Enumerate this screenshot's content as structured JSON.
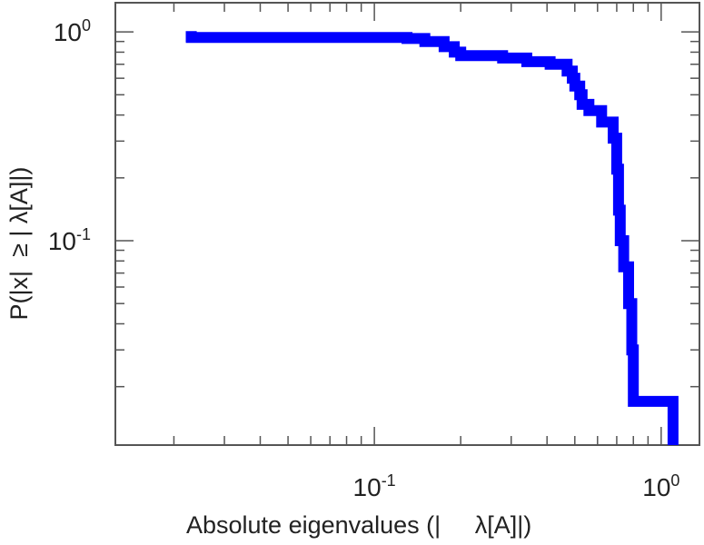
{
  "chart_data": {
    "type": "line",
    "title": "",
    "xlabel": "Absolute eigenvalues (|     λ[A]|)",
    "ylabel": "P(|x|  ≥ | λ[A]|)",
    "xscale": "log",
    "yscale": "log",
    "xlim": [
      0.0125,
      1.36
    ],
    "ylim": [
      0.0105,
      1.38
    ],
    "x_ticks": [
      {
        "value": 0.1,
        "base": "10",
        "exp": "-1"
      },
      {
        "value": 1,
        "base": "10",
        "exp": "0"
      }
    ],
    "y_ticks": [
      {
        "value": 0.1,
        "base": "10",
        "exp": "-1"
      },
      {
        "value": 1,
        "base": "10",
        "exp": "0"
      }
    ],
    "grid": false,
    "color": "#0000ff",
    "series": [
      {
        "x": [
          0.022,
          0.023,
          0.13,
          0.15,
          0.175,
          0.19,
          0.2,
          0.28,
          0.34,
          0.41,
          0.47,
          0.49,
          0.5,
          0.52,
          0.53,
          0.56,
          0.62,
          0.68,
          0.7,
          0.71,
          0.72,
          0.74,
          0.77,
          0.79,
          0.8,
          1.1
        ],
        "y": [
          0.95,
          0.94,
          0.93,
          0.9,
          0.85,
          0.8,
          0.77,
          0.75,
          0.72,
          0.7,
          0.65,
          0.6,
          0.55,
          0.5,
          0.45,
          0.42,
          0.37,
          0.31,
          0.22,
          0.14,
          0.1,
          0.075,
          0.05,
          0.03,
          0.017,
          0.0105
        ]
      }
    ]
  }
}
